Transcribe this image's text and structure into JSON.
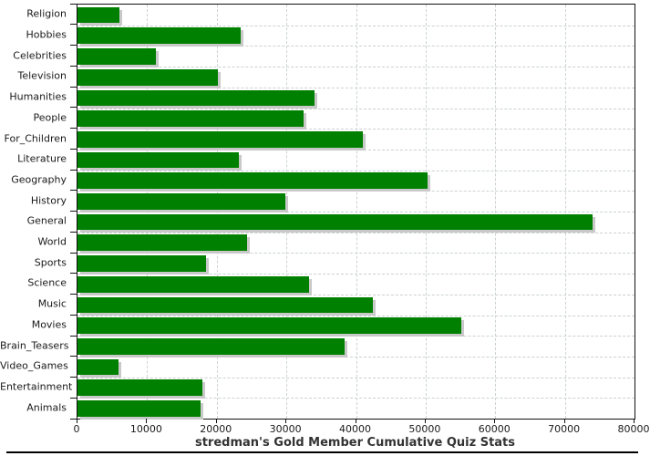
{
  "chart_data": {
    "type": "bar",
    "orientation": "horizontal",
    "title": "stredman's Gold Member Cumulative Quiz Stats",
    "categories": [
      "Religion",
      "Hobbies",
      "Celebrities",
      "Television",
      "Humanities",
      "People",
      "For_Children",
      "Literature",
      "Geography",
      "History",
      "General",
      "World",
      "Sports",
      "Science",
      "Music",
      "Movies",
      "Brain_Teasers",
      "Video_Games",
      "Entertainment",
      "Animals"
    ],
    "values": [
      6000,
      23500,
      11300,
      20200,
      34000,
      32500,
      41000,
      23200,
      50300,
      29900,
      74000,
      24300,
      18400,
      33300,
      42400,
      55100,
      38400,
      5900,
      17900,
      17700
    ],
    "xlabel": "",
    "ylabel": "",
    "xlim": [
      0,
      80000
    ],
    "x_ticks": [
      0,
      10000,
      20000,
      30000,
      40000,
      50000,
      60000,
      70000,
      80000
    ],
    "grid": true,
    "legend": "none",
    "bar_color": "#008000",
    "bar_shadow_color": "#c9c9c9",
    "gridline_color": "#ccd2d2",
    "axis_color": "#111111",
    "title_color": "#333333"
  }
}
